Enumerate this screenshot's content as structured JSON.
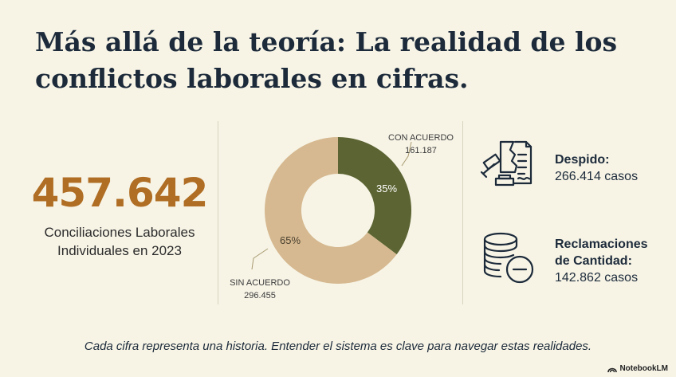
{
  "title": "Más allá de la teoría: La realidad de los conflictos laborales en cifras.",
  "stat": {
    "value": "457.642",
    "label_line1": "Conciliaciones Laborales",
    "label_line2": "Individuales en 2023"
  },
  "chart_data": {
    "type": "pie",
    "donut": true,
    "slices": [
      {
        "label": "CON ACUERDO",
        "value": 161187,
        "value_text": "161.187",
        "percent": 35,
        "percent_text": "35%",
        "color": "#5b6432"
      },
      {
        "label": "SIN ACUERDO",
        "value": 296455,
        "value_text": "296.455",
        "percent": 65,
        "percent_text": "65%",
        "color": "#d6b990"
      }
    ]
  },
  "items": [
    {
      "title": "Despido:",
      "value": "266.414 casos",
      "icon": "gavel-document-icon"
    },
    {
      "title_line1": "Reclamaciones",
      "title_line2": "de Cantidad:",
      "value": "142.862 casos",
      "icon": "coins-minus-icon"
    }
  ],
  "footer": "Cada cifra representa una historia. Entender el sistema es clave para navegar estas realidades.",
  "brand": "NotebookLM"
}
